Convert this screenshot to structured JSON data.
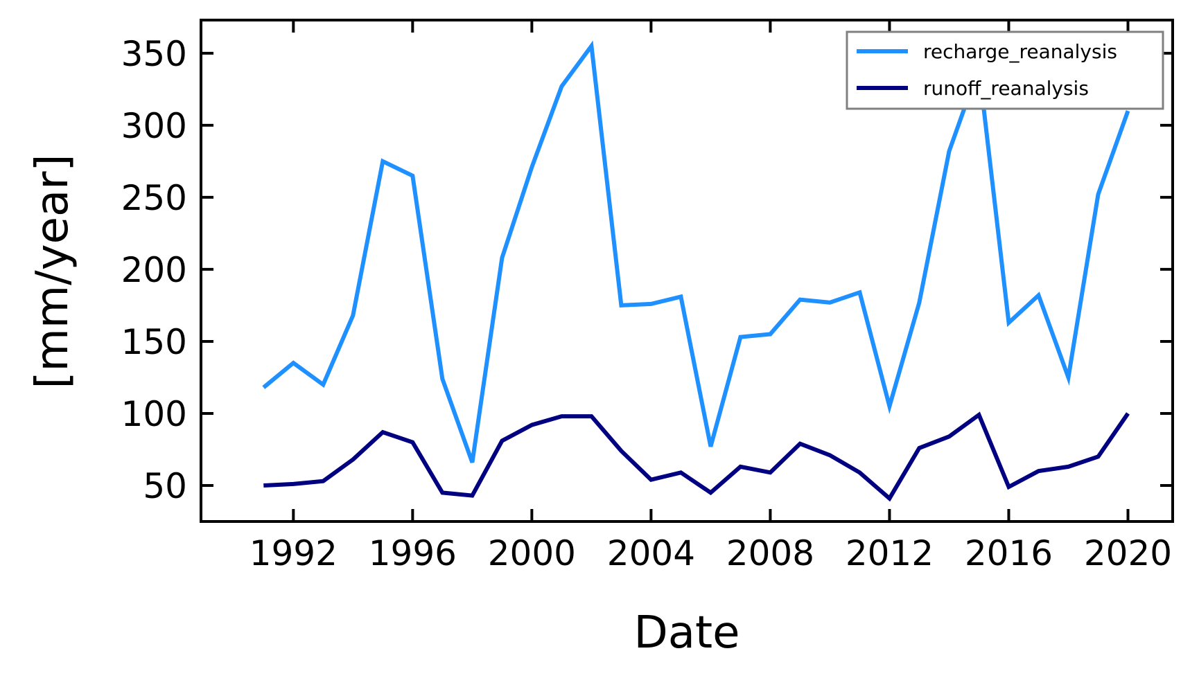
{
  "chart_data": {
    "type": "line",
    "xlabel": "Date",
    "ylabel": "[mm/year]",
    "xlim": [
      1988.9,
      2021.5
    ],
    "ylim": [
      25,
      373
    ],
    "x_ticks": [
      1992,
      1996,
      2000,
      2004,
      2008,
      2012,
      2016,
      2020
    ],
    "x_tick_labels": [
      "1992",
      "1996",
      "2000",
      "2004",
      "2008",
      "2012",
      "2016",
      "2020"
    ],
    "y_ticks": [
      50,
      100,
      150,
      200,
      250,
      300,
      350
    ],
    "y_tick_labels": [
      "50",
      "100",
      "150",
      "200",
      "250",
      "300",
      "350"
    ],
    "legend_position": "top-right",
    "grid": false,
    "x": [
      1991,
      1992,
      1993,
      1994,
      1995,
      1996,
      1997,
      1998,
      1999,
      2000,
      2001,
      2002,
      2003,
      2004,
      2005,
      2006,
      2007,
      2008,
      2009,
      2010,
      2011,
      2012,
      2013,
      2014,
      2015,
      2016,
      2017,
      2018,
      2019,
      2020
    ],
    "series": [
      {
        "name": "recharge_reanalysis",
        "color": "#1e90ff",
        "values": [
          118,
          135,
          120,
          168,
          275,
          265,
          124,
          66,
          208,
          271,
          327,
          355,
          175,
          176,
          181,
          77,
          153,
          155,
          179,
          177,
          184,
          105,
          177,
          282,
          340,
          163,
          182,
          125,
          252,
          310
        ]
      },
      {
        "name": "runoff_reanalysis",
        "color": "#000080",
        "values": [
          50,
          51,
          53,
          68,
          87,
          80,
          45,
          43,
          81,
          92,
          98,
          98,
          74,
          54,
          59,
          45,
          63,
          59,
          79,
          71,
          59,
          41,
          76,
          84,
          99,
          49,
          60,
          63,
          70,
          100
        ]
      }
    ]
  }
}
